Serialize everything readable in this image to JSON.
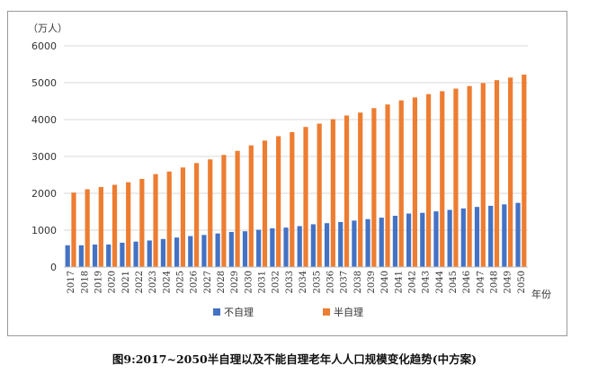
{
  "caption": "图9:2017~2050半自理以及不能自理老年人人口规模变化趋势(中方案)",
  "chart_data": {
    "type": "bar",
    "y_unit_label": "（万人）",
    "x_unit_label": "年份",
    "ylim": [
      0,
      6000
    ],
    "yticks": [
      0,
      1000,
      2000,
      3000,
      4000,
      5000,
      6000
    ],
    "grid": true,
    "legend_position": "bottom",
    "categories": [
      "2017",
      "2018",
      "2019",
      "2020",
      "2021",
      "2022",
      "2023",
      "2024",
      "2025",
      "2026",
      "2027",
      "2028",
      "2029",
      "2030",
      "2031",
      "2032",
      "2033",
      "2034",
      "2035",
      "2036",
      "2037",
      "2038",
      "2039",
      "2040",
      "2041",
      "2042",
      "2043",
      "2044",
      "2045",
      "2046",
      "2047",
      "2048",
      "2049",
      "2050"
    ],
    "series": [
      {
        "name": "不自理",
        "color": "#4472c4",
        "values": [
          590,
          590,
          610,
          610,
          660,
          690,
          720,
          760,
          800,
          840,
          870,
          910,
          950,
          970,
          1010,
          1050,
          1070,
          1110,
          1160,
          1190,
          1220,
          1260,
          1300,
          1340,
          1390,
          1450,
          1470,
          1510,
          1550,
          1590,
          1630,
          1660,
          1700,
          1740
        ]
      },
      {
        "name": "半自理",
        "color": "#ed7d31",
        "values": [
          2020,
          2110,
          2170,
          2230,
          2300,
          2390,
          2520,
          2590,
          2700,
          2820,
          2920,
          3040,
          3150,
          3300,
          3430,
          3550,
          3660,
          3800,
          3890,
          4010,
          4110,
          4190,
          4310,
          4410,
          4520,
          4600,
          4690,
          4770,
          4840,
          4910,
          4990,
          5070,
          5140,
          5220
        ]
      }
    ]
  }
}
